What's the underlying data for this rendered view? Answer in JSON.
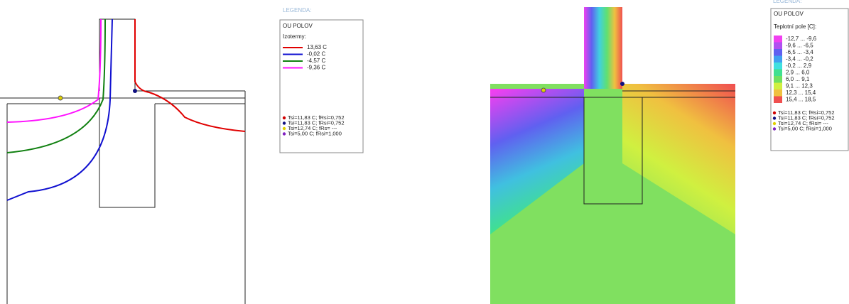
{
  "left": {
    "legend_heading": "LEGENDA:",
    "legend_title": "OU POLOV",
    "legend_subtitle": "Izotermy:",
    "isotherms": [
      {
        "label": "13,63 C",
        "color": "#e00000"
      },
      {
        "label": "-0,02 C",
        "color": "#1010d0"
      },
      {
        "label": "-4,57 C",
        "color": "#108010"
      },
      {
        "label": "-9,36 C",
        "color": "#ff10ff"
      }
    ],
    "points": [
      {
        "label": "Tsi=11,83 C; fRsi=0,752",
        "color": "#d00000"
      },
      {
        "label": "Tsi=11,83 C; fRsi=0,752",
        "color": "#101080"
      },
      {
        "label": "Tsi=12,74 C; fRs= ---",
        "color": "#e0d000"
      },
      {
        "label": "Tsi=5,00 C; fRsi=1,000",
        "color": "#8020c0"
      }
    ]
  },
  "right": {
    "legend_heading": "LEGENDA:",
    "legend_title": "OU POLOV",
    "field_title": "Teplotní pole [C]:",
    "ranges": [
      {
        "label": "-12,7 ... -9,6",
        "color": "#f040f0"
      },
      {
        "label": "-9,6 ... -6,5",
        "color": "#b050f0"
      },
      {
        "label": "-6,5 ... -3,4",
        "color": "#6060f0"
      },
      {
        "label": "-3,4 ... -0,2",
        "color": "#40a0f0"
      },
      {
        "label": "-0,2 ... 2,9",
        "color": "#40e0e0"
      },
      {
        "label": "2,9 ... 6,0",
        "color": "#40e090"
      },
      {
        "label": "6,0 ... 9,1",
        "color": "#70e060"
      },
      {
        "label": "9,1 ... 12,3",
        "color": "#d0f040"
      },
      {
        "label": "12,3 ... 15,4",
        "color": "#f0c040"
      },
      {
        "label": "15,4 ... 18,5",
        "color": "#f05050"
      }
    ],
    "points": [
      {
        "label": "Tsi=11,83 C; fRsi=0,752",
        "color": "#d00000"
      },
      {
        "label": "Tsi=11,83 C; fRsi=0,752",
        "color": "#101080"
      },
      {
        "label": "Tsi=12,74 C; fRsi= ---",
        "color": "#e0d000"
      },
      {
        "label": "Tsi=5,00 C; fRsi=1,000",
        "color": "#8020c0"
      }
    ]
  }
}
